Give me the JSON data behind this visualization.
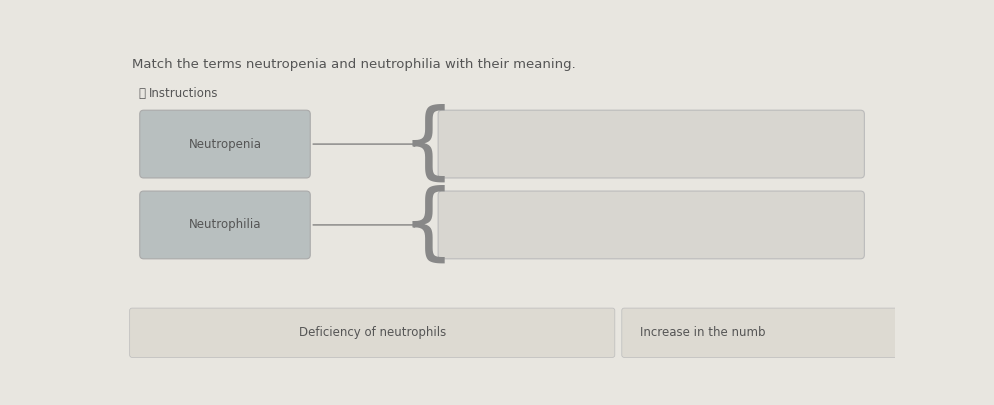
{
  "title": "Match the terms neutropenia and neutrophilia with their meaning.",
  "instructions_text": "Instructions",
  "background_color": "#e8e6e0",
  "term_box_color": "#b8bfbf",
  "answer_box_color": "#d8d6d0",
  "bottom_box_color": "#dddad2",
  "term_box_edge_color": "#aaaaaa",
  "answer_box_edge_color": "#bbbbbb",
  "terms": [
    "Neutropenia",
    "Neutrophilia"
  ],
  "bottom_labels": [
    "Deficiency of neutrophils",
    "Increase in the numb"
  ],
  "text_color": "#555555",
  "title_color": "#555555",
  "arrow_color": "#777777",
  "brace_color": "#888888",
  "font_size_title": 9.5,
  "font_size_terms": 8.5,
  "font_size_instructions": 8.5,
  "font_size_bottom": 8.5,
  "font_size_brace": 60
}
